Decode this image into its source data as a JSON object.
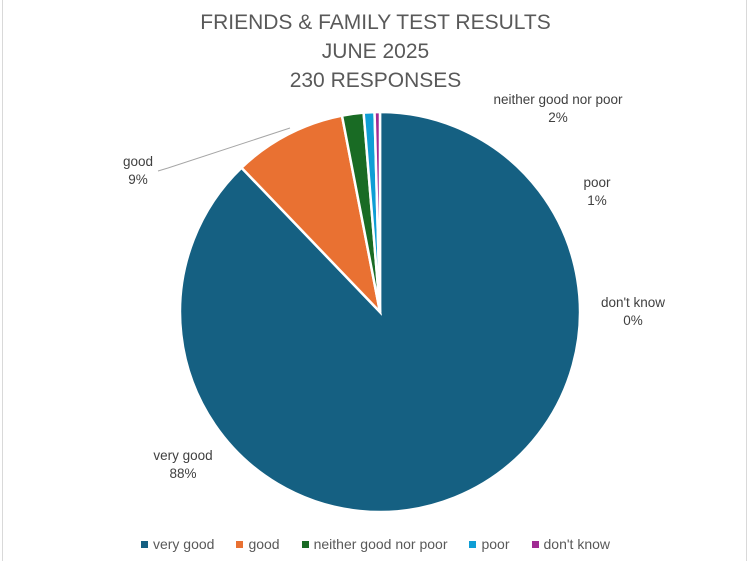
{
  "chart_data": {
    "type": "pie",
    "title_lines": [
      "FRIENDS & FAMILY TEST RESULTS",
      "JUNE 2025",
      "230 RESPONSES"
    ],
    "categories": [
      "very good",
      "good",
      "neither good nor poor",
      "poor",
      "don't know"
    ],
    "values": [
      202,
      21,
      4,
      2,
      1
    ],
    "percent_labels": [
      "88%",
      "9%",
      "2%",
      "1%",
      "0%"
    ],
    "colors": [
      "#156082",
      "#E97132",
      "#196B24",
      "#0F9ED5",
      "#A02B93"
    ],
    "start_angle": "top, clockwise",
    "legend_position": "bottom"
  }
}
